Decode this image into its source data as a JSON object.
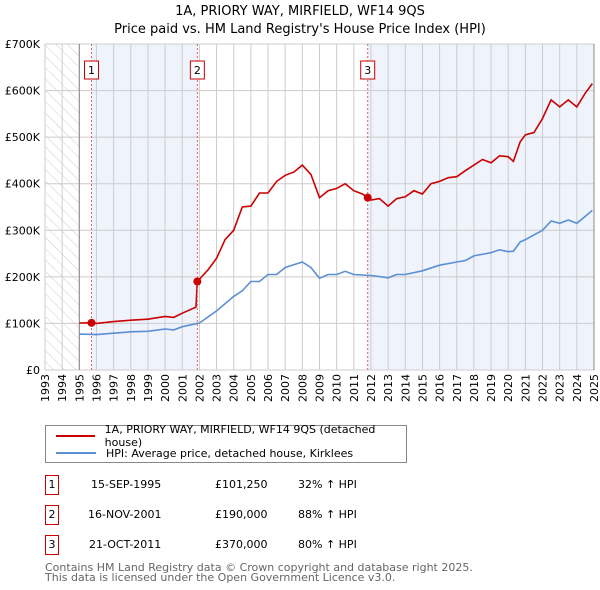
{
  "title_line1": "1A, PRIORY WAY, MIRFIELD, WF14 9QS",
  "title_line2": "Price paid vs. HM Land Registry's House Price Index (HPI)",
  "colors": {
    "property": "#cc0000",
    "hpi": "#5b8fd4",
    "shade": "#eef3fc"
  },
  "chart_data": {
    "type": "line",
    "title": "Price paid vs. HM Land Registry's House Price Index (HPI)",
    "xlim": [
      1993,
      2025
    ],
    "ylim": [
      0,
      700000
    ],
    "x_ticks": [
      "1993",
      "1994",
      "1995",
      "1996",
      "1997",
      "1998",
      "1999",
      "2000",
      "2001",
      "2002",
      "2003",
      "2004",
      "2005",
      "2006",
      "2007",
      "2008",
      "2009",
      "2010",
      "2011",
      "2012",
      "2013",
      "2014",
      "2015",
      "2016",
      "2017",
      "2018",
      "2019",
      "2020",
      "2021",
      "2022",
      "2023",
      "2024",
      "2025"
    ],
    "y_ticks": [
      {
        "v": 0,
        "label": "£0"
      },
      {
        "v": 100000,
        "label": "£100K"
      },
      {
        "v": 200000,
        "label": "£200K"
      },
      {
        "v": 300000,
        "label": "£300K"
      },
      {
        "v": 400000,
        "label": "£400K"
      },
      {
        "v": 500000,
        "label": "£500K"
      },
      {
        "v": 600000,
        "label": "£600K"
      },
      {
        "v": 700000,
        "label": "£700K"
      }
    ],
    "grid": true,
    "series": [
      {
        "name": "1A, PRIORY WAY, MIRFIELD, WF14 9QS (detached house)",
        "color": "#cc0000",
        "x": [
          1995,
          1995.7,
          1996,
          1997,
          1998,
          1999,
          2000,
          2000.5,
          2001,
          2001.8,
          2001.88,
          2002.5,
          2003,
          2003.5,
          2004,
          2004.5,
          2005,
          2005.5,
          2006,
          2006.5,
          2007,
          2007.5,
          2008,
          2008.5,
          2009,
          2009.5,
          2010,
          2010.5,
          2011,
          2011.5,
          2011.8,
          2012,
          2012.5,
          2013,
          2013.5,
          2014,
          2014.5,
          2015,
          2015.5,
          2016,
          2016.5,
          2017,
          2017.5,
          2018,
          2018.5,
          2019,
          2019.5,
          2020,
          2020.3,
          2020.7,
          2021,
          2021.5,
          2022,
          2022.5,
          2023,
          2023.5,
          2024,
          2024.5,
          2024.9
        ],
        "y": [
          101000,
          101250,
          100000,
          104000,
          107000,
          109000,
          115000,
          113000,
          122000,
          135000,
          190000,
          215000,
          240000,
          280000,
          300000,
          350000,
          352000,
          380000,
          380000,
          405000,
          418000,
          425000,
          440000,
          420000,
          370000,
          385000,
          390000,
          400000,
          385000,
          378000,
          370000,
          365000,
          368000,
          352000,
          368000,
          372000,
          385000,
          378000,
          400000,
          405000,
          413000,
          415000,
          428000,
          440000,
          452000,
          445000,
          460000,
          458000,
          448000,
          490000,
          505000,
          510000,
          540000,
          580000,
          565000,
          580000,
          565000,
          595000,
          615000
        ]
      },
      {
        "name": "HPI: Average price, detached house, Kirklees",
        "color": "#5b8fd4",
        "x": [
          1995,
          1996,
          1997,
          1998,
          1999,
          2000,
          2000.5,
          2001,
          2002,
          2003,
          2004,
          2004.5,
          2005,
          2005.5,
          2006,
          2006.5,
          2007,
          2008,
          2008.5,
          2009,
          2009.5,
          2010,
          2010.5,
          2011,
          2012,
          2013,
          2013.5,
          2014,
          2015,
          2016,
          2017,
          2017.5,
          2018,
          2019,
          2019.5,
          2020,
          2020.3,
          2020.7,
          2021,
          2021.5,
          2022,
          2022.5,
          2023,
          2023.5,
          2024,
          2024.5,
          2024.9
        ],
        "y": [
          77000,
          76000,
          79000,
          82000,
          83000,
          88000,
          86000,
          93000,
          101000,
          127000,
          158000,
          170000,
          190000,
          190000,
          205000,
          205000,
          220000,
          232000,
          220000,
          197000,
          205000,
          205000,
          212000,
          205000,
          203000,
          198000,
          205000,
          205000,
          213000,
          225000,
          232000,
          235000,
          245000,
          252000,
          258000,
          254000,
          255000,
          275000,
          280000,
          290000,
          300000,
          320000,
          315000,
          322000,
          315000,
          330000,
          343000
        ]
      }
    ],
    "sales": [
      {
        "label": "1",
        "x": 1995.71,
        "y": 101250
      },
      {
        "label": "2",
        "x": 2001.88,
        "y": 190000
      },
      {
        "label": "3",
        "x": 2011.81,
        "y": 370000
      }
    ],
    "legend_position": "below"
  },
  "legend": {
    "property": "1A, PRIORY WAY, MIRFIELD, WF14 9QS (detached house)",
    "hpi": "HPI: Average price, detached house, Kirklees"
  },
  "transactions": [
    {
      "num": "1",
      "date": "15-SEP-1995",
      "price": "£101,250",
      "hpi": "32% ↑ HPI"
    },
    {
      "num": "2",
      "date": "16-NOV-2001",
      "price": "£190,000",
      "hpi": "88% ↑ HPI"
    },
    {
      "num": "3",
      "date": "21-OCT-2011",
      "price": "£370,000",
      "hpi": "80% ↑ HPI"
    }
  ],
  "footer": {
    "line1": "Contains HM Land Registry data © Crown copyright and database right 2025.",
    "line2": "This data is licensed under the Open Government Licence v3.0."
  }
}
